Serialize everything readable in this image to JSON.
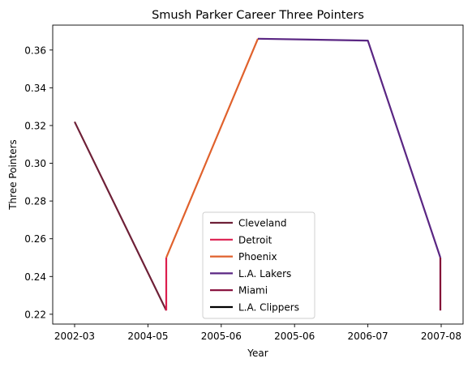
{
  "chart_data": {
    "type": "line",
    "title": "Smush Parker Career Three Pointers",
    "xlabel": "Year",
    "ylabel": "Three Pointers",
    "x_tick_labels": [
      "2002-03",
      "2004-05",
      "2005-06",
      "2005-06",
      "2006-07",
      "2007-08"
    ],
    "y_ticks": [
      0.22,
      0.24,
      0.26,
      0.28,
      0.3,
      0.32,
      0.34,
      0.36
    ],
    "y_tick_labels": [
      "0.22",
      "0.24",
      "0.26",
      "0.28",
      "0.30",
      "0.32",
      "0.34",
      "0.36"
    ],
    "ylim": [
      0.2148,
      0.3732
    ],
    "grid": false,
    "legend_position": "lower-center",
    "series": [
      {
        "name": "Cleveland",
        "color": "#6e2037",
        "points": [
          [
            "2002-03",
            0.322
          ],
          [
            "2004-05",
            0.222
          ]
        ]
      },
      {
        "name": "Detroit",
        "color": "#dc1e4e",
        "points": [
          [
            "2004-05",
            0.222
          ],
          [
            "2004-05",
            0.25
          ]
        ]
      },
      {
        "name": "Phoenix",
        "color": "#e0612c",
        "points": [
          [
            "2004-05",
            0.25
          ],
          [
            "2005-06",
            0.366
          ]
        ]
      },
      {
        "name": "L.A. Lakers",
        "color": "#5a2683",
        "points": [
          [
            "2005-06",
            0.366
          ],
          [
            "2006-07",
            0.365
          ],
          [
            "2007-08",
            0.25
          ]
        ]
      },
      {
        "name": "Miami",
        "color": "#840837",
        "points": [
          [
            "2007-08",
            0.25
          ],
          [
            "2007-08",
            0.222
          ]
        ]
      },
      {
        "name": "L.A. Clippers",
        "color": "#000000",
        "points": []
      }
    ]
  }
}
